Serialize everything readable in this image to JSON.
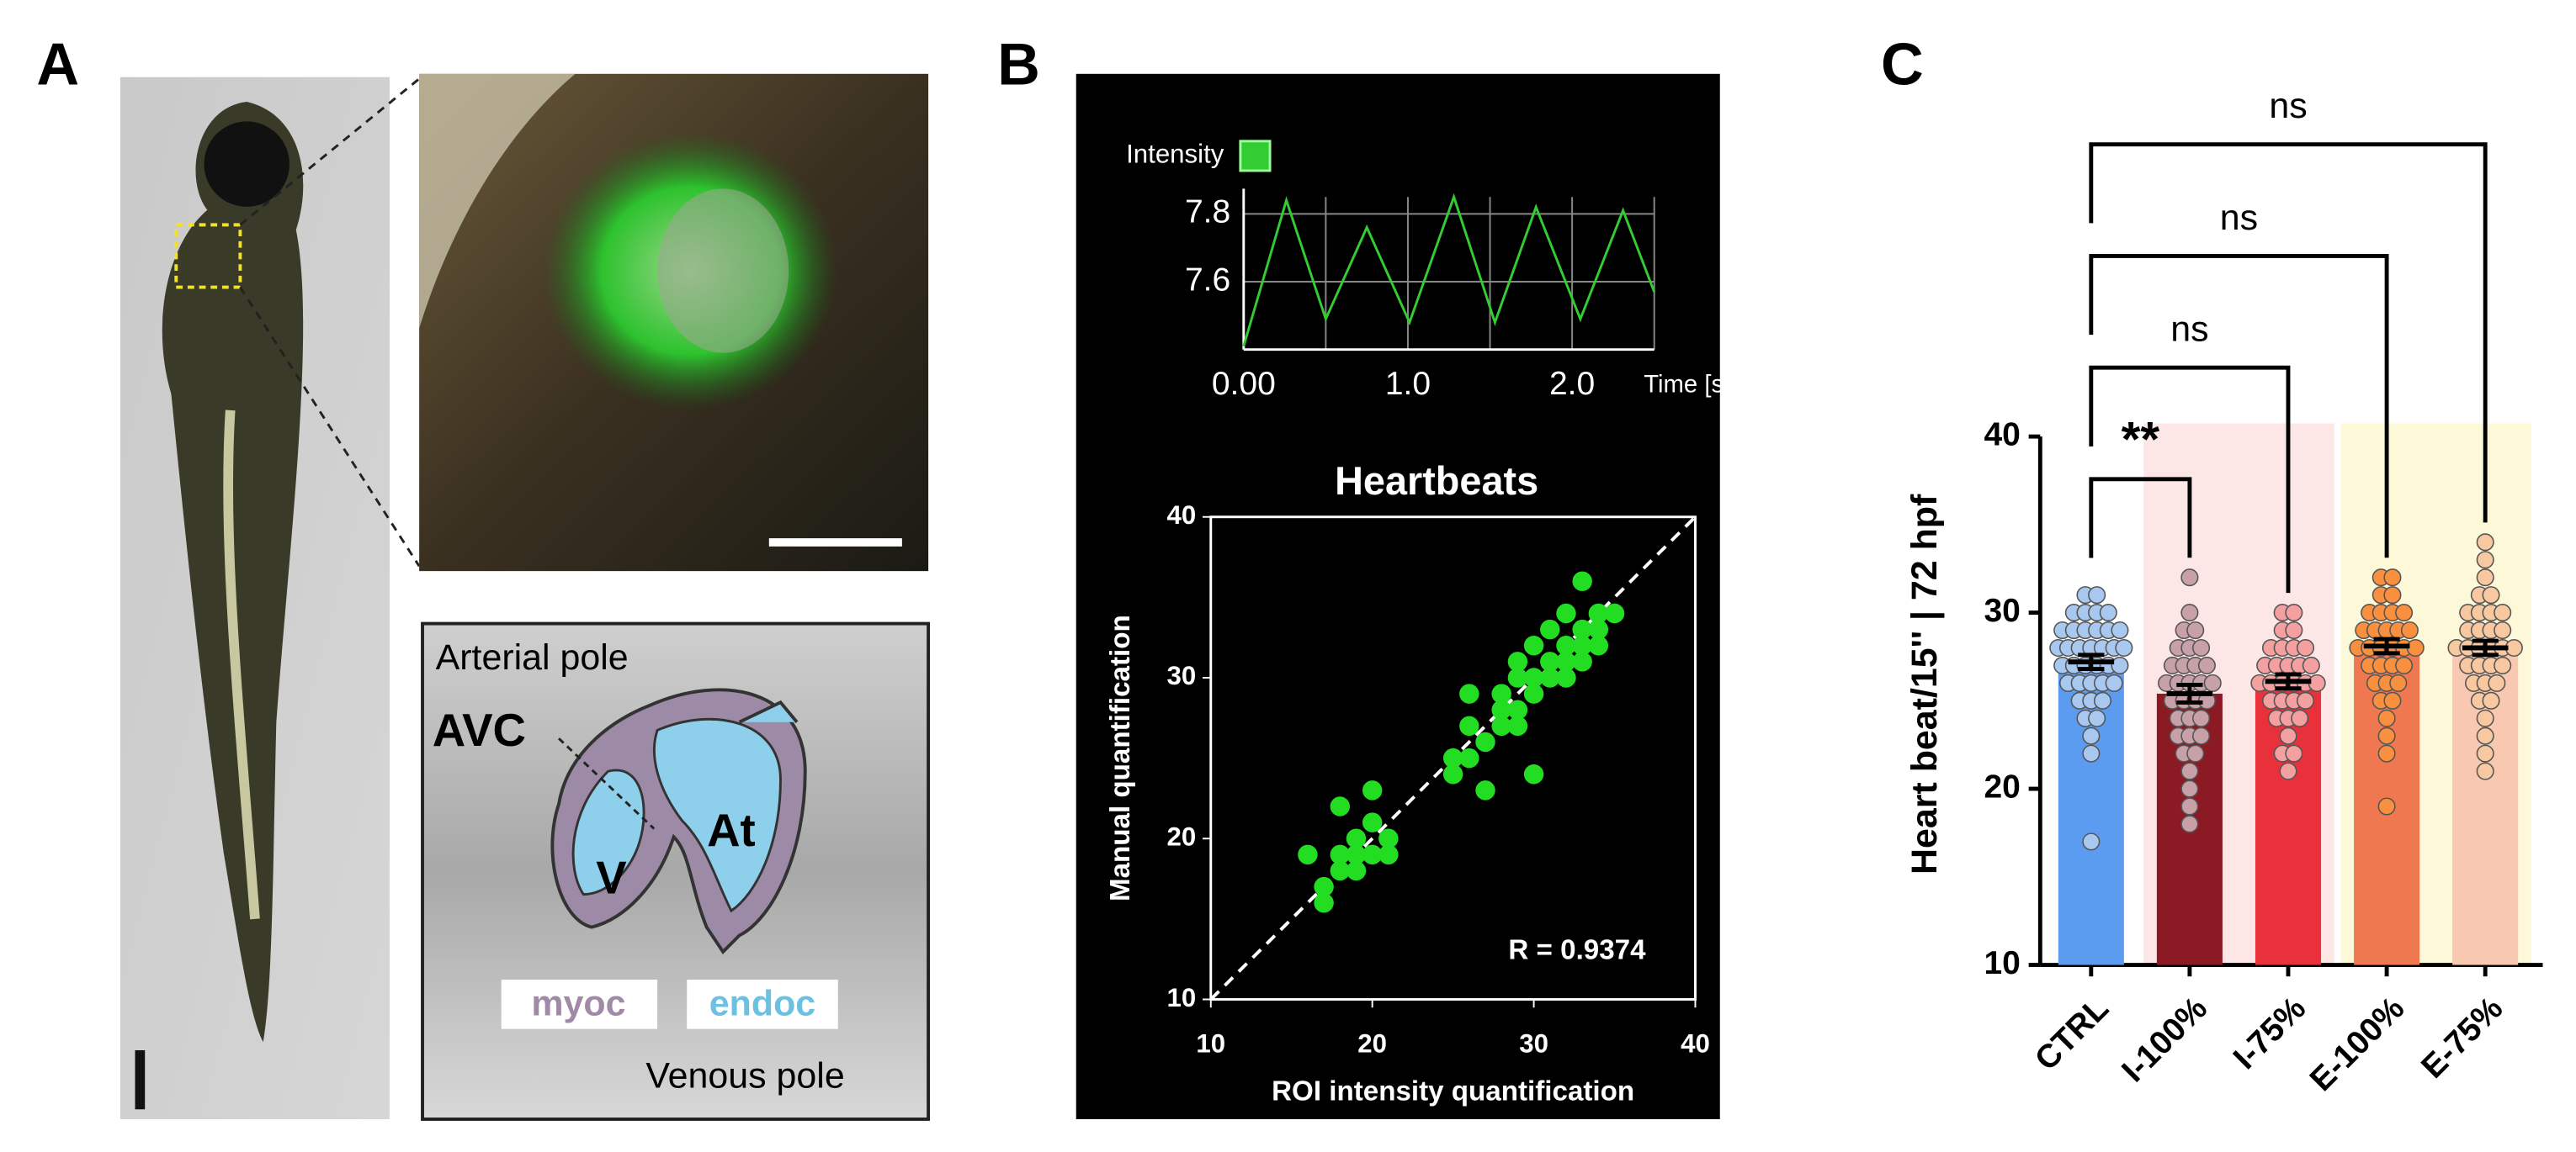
{
  "panel_labels": [
    "A",
    "B",
    "C"
  ],
  "panel_a": {
    "arterial": "Arterial pole",
    "avc": "AVC",
    "v": "V",
    "at": "At",
    "myoc": "myoc",
    "endoc": "endoc",
    "venous": "Venous pole"
  },
  "chart_data": [
    {
      "type": "line",
      "x": [
        0,
        0.26,
        0.5,
        0.75,
        1.01,
        1.28,
        1.53,
        1.78,
        2.05,
        2.31,
        2.5
      ],
      "series": [
        {
          "name": "Intensity",
          "color": "#33cc33",
          "values": [
            7.41,
            7.84,
            7.49,
            7.76,
            7.48,
            7.85,
            7.48,
            7.82,
            7.49,
            7.81,
            7.57
          ]
        }
      ],
      "xlim": [
        0,
        2.5
      ],
      "ylim": [
        7.4,
        7.85
      ],
      "xticks": [
        {
          "value": 0,
          "label": "0.00"
        },
        {
          "value": 1,
          "label": "1.0"
        },
        {
          "value": 2,
          "label": "2.0"
        }
      ],
      "xminorticks": [
        0.5,
        1.5,
        2.5
      ],
      "yticks": [
        7.6,
        7.8
      ],
      "xlabel": "Time [s]",
      "grid": true
    },
    {
      "type": "scatter",
      "title": "Heartbeats",
      "xlabel": "ROI intensity quantification",
      "ylabel": "Manual quantification",
      "x": [
        16,
        17,
        17,
        18,
        18,
        18,
        19,
        19,
        20,
        20,
        20,
        21,
        21,
        19,
        25,
        25,
        26,
        26,
        26,
        27,
        28,
        28,
        28,
        29,
        29,
        29,
        30,
        30,
        30,
        30,
        31,
        31,
        31,
        32,
        32,
        32,
        32,
        33,
        33,
        33,
        34,
        34,
        34,
        35,
        33,
        29,
        27
      ],
      "values": [
        19,
        17,
        16,
        19,
        18,
        22,
        19,
        20,
        23,
        21,
        19,
        20,
        19,
        18,
        24,
        25,
        27,
        29,
        25,
        23,
        27,
        28,
        29,
        28,
        30,
        31,
        30,
        29,
        24,
        32,
        30,
        31,
        33,
        30,
        31,
        32,
        34,
        32,
        33,
        31,
        33,
        34,
        32,
        34,
        36,
        27,
        26
      ],
      "color": "#22dd22",
      "xlim": [
        10,
        40
      ],
      "ylim": [
        10,
        40
      ],
      "xticks": [
        10,
        20,
        30,
        40
      ],
      "yticks": [
        10,
        20,
        30,
        40
      ],
      "annotation": "R = 0.9374",
      "identity_line": true
    },
    {
      "type": "bar",
      "categories": [
        "CTRL",
        "I-100%",
        "I-75%",
        "E-100%",
        "E-75%"
      ],
      "values": [
        27.2,
        25.4,
        26.1,
        28.1,
        28.0
      ],
      "errors": [
        0.4,
        0.5,
        0.4,
        0.4,
        0.4
      ],
      "colors": [
        "#5b9bf0",
        "#8b1a24",
        "#e8313a",
        "#f07850",
        "#f8c8b0"
      ],
      "point_colors": [
        "#a8c8f0",
        "#c8a0a8",
        "#f4a0a0",
        "#f89040",
        "#f8c8a0"
      ],
      "points": [
        [
          17,
          22,
          23,
          24,
          24,
          25,
          25,
          26,
          26,
          26,
          27,
          27,
          27,
          27,
          28,
          28,
          28,
          28,
          28,
          29,
          29,
          29,
          29,
          30,
          30,
          30,
          31,
          31,
          26,
          27,
          28,
          29,
          28,
          27,
          25,
          26,
          29,
          30
        ],
        [
          18,
          19,
          20,
          21,
          22,
          23,
          23,
          24,
          24,
          25,
          25,
          25,
          26,
          26,
          26,
          26,
          27,
          27,
          27,
          28,
          28,
          28,
          29,
          29,
          30,
          32,
          24,
          25,
          26,
          27,
          23,
          22
        ],
        [
          21,
          22,
          22,
          23,
          24,
          24,
          25,
          25,
          25,
          26,
          26,
          26,
          26,
          27,
          27,
          27,
          27,
          28,
          28,
          28,
          29,
          29,
          30,
          30,
          24,
          25,
          26,
          27,
          28,
          26
        ],
        [
          19,
          22,
          23,
          24,
          25,
          26,
          26,
          27,
          27,
          27,
          28,
          28,
          28,
          28,
          29,
          29,
          29,
          29,
          30,
          30,
          30,
          31,
          31,
          32,
          32,
          27,
          28,
          29,
          30,
          28,
          26,
          25
        ],
        [
          21,
          22,
          23,
          24,
          25,
          25,
          26,
          26,
          27,
          27,
          27,
          28,
          28,
          28,
          28,
          29,
          29,
          29,
          30,
          30,
          30,
          31,
          31,
          32,
          33,
          34,
          27,
          28,
          29,
          28,
          26,
          30
        ]
      ],
      "ylim": [
        10,
        40
      ],
      "yticks": [
        10,
        20,
        30,
        40
      ],
      "ylabel": "Heart beat/15'' | 72 hpf",
      "backgrounds": [
        {
          "from": 1,
          "to": 2,
          "color": "#fde6e6"
        },
        {
          "from": 3,
          "to": 4,
          "color": "#fdf8d8"
        }
      ],
      "comparisons": [
        {
          "pair": [
            0,
            4
          ],
          "label": "ns"
        },
        {
          "pair": [
            0,
            3
          ],
          "label": "ns"
        },
        {
          "pair": [
            0,
            2
          ],
          "label": "ns"
        },
        {
          "pair": [
            0,
            1
          ],
          "label": "**"
        }
      ]
    }
  ]
}
